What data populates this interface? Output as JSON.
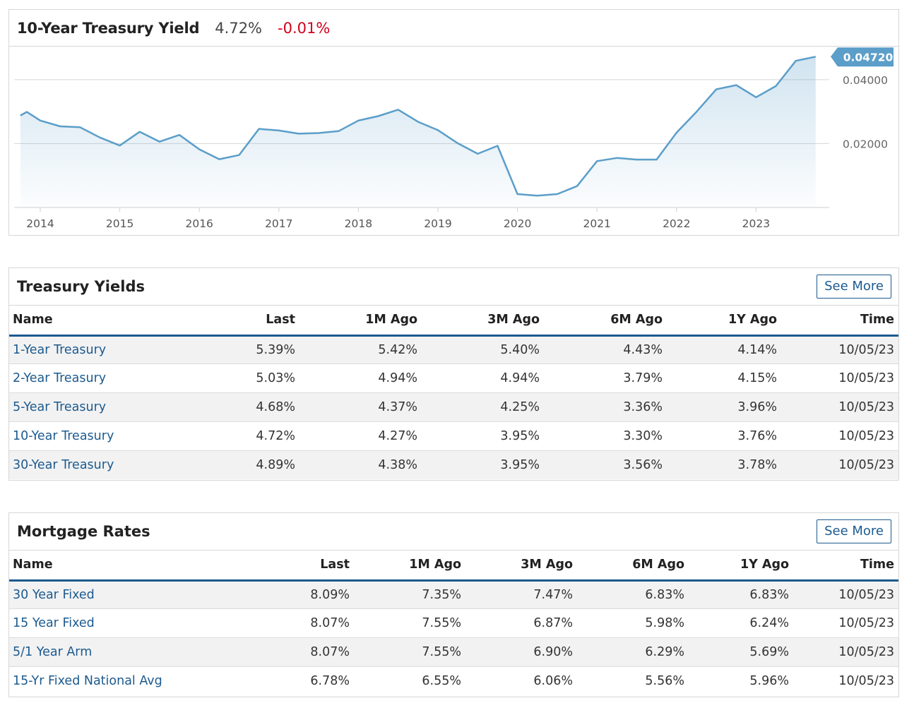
{
  "chart": {
    "title": "10-Year Treasury Yield",
    "last": "4.72%",
    "change": "-0.01%",
    "current_label": "0.04720",
    "line_color": "#5b9ec9",
    "label_bg": "#5b9ec9",
    "change_color": "#d0021b"
  },
  "chart_data": {
    "type": "area",
    "x": [
      2013.75,
      2013.83,
      2014.0,
      2014.25,
      2014.5,
      2014.75,
      2015.0,
      2015.25,
      2015.5,
      2015.75,
      2016.0,
      2016.25,
      2016.5,
      2016.75,
      2017.0,
      2017.25,
      2017.5,
      2017.75,
      2018.0,
      2018.25,
      2018.5,
      2018.75,
      2019.0,
      2019.25,
      2019.5,
      2019.75,
      2020.0,
      2020.25,
      2020.5,
      2020.75,
      2021.0,
      2021.25,
      2021.5,
      2021.75,
      2022.0,
      2022.25,
      2022.5,
      2022.75,
      2023.0,
      2023.25,
      2023.5,
      2023.75
    ],
    "values": [
      0.0288,
      0.0299,
      0.0272,
      0.0254,
      0.0251,
      0.0219,
      0.0194,
      0.0237,
      0.0206,
      0.0227,
      0.0182,
      0.0151,
      0.0164,
      0.0246,
      0.0241,
      0.0231,
      0.0233,
      0.0239,
      0.0272,
      0.0286,
      0.0306,
      0.0268,
      0.0242,
      0.0201,
      0.0168,
      0.0193,
      0.0042,
      0.0037,
      0.0042,
      0.0067,
      0.0145,
      0.0155,
      0.015,
      0.015,
      0.0234,
      0.0299,
      0.037,
      0.0383,
      0.0345,
      0.038,
      0.0459,
      0.0472
    ],
    "x_ticks": [
      "2014",
      "2015",
      "2016",
      "2017",
      "2018",
      "2019",
      "2020",
      "2021",
      "2022",
      "2023"
    ],
    "y_ticks": [
      "0.04000",
      "0.02000"
    ],
    "ylim": [
      0.0,
      0.053
    ],
    "xlim": [
      2013.75,
      2024.0
    ],
    "grid": true
  },
  "treasury": {
    "title": "Treasury Yields",
    "see_more": "See More",
    "columns": [
      "Name",
      "Last",
      "1M Ago",
      "3M Ago",
      "6M Ago",
      "1Y Ago",
      "Time"
    ],
    "rows": [
      [
        "1-Year Treasury",
        "5.39%",
        "5.42%",
        "5.40%",
        "4.43%",
        "4.14%",
        "10/05/23"
      ],
      [
        "2-Year Treasury",
        "5.03%",
        "4.94%",
        "4.94%",
        "3.79%",
        "4.15%",
        "10/05/23"
      ],
      [
        "5-Year Treasury",
        "4.68%",
        "4.37%",
        "4.25%",
        "3.36%",
        "3.96%",
        "10/05/23"
      ],
      [
        "10-Year Treasury",
        "4.72%",
        "4.27%",
        "3.95%",
        "3.30%",
        "3.76%",
        "10/05/23"
      ],
      [
        "30-Year Treasury",
        "4.89%",
        "4.38%",
        "3.95%",
        "3.56%",
        "3.78%",
        "10/05/23"
      ]
    ]
  },
  "mortgage": {
    "title": "Mortgage Rates",
    "see_more": "See More",
    "columns": [
      "Name",
      "Last",
      "1M Ago",
      "3M Ago",
      "6M Ago",
      "1Y Ago",
      "Time"
    ],
    "rows": [
      [
        "30 Year Fixed",
        "8.09%",
        "7.35%",
        "7.47%",
        "6.83%",
        "6.83%",
        "10/05/23"
      ],
      [
        "15 Year Fixed",
        "8.07%",
        "7.55%",
        "6.87%",
        "5.98%",
        "6.24%",
        "10/05/23"
      ],
      [
        "5/1 Year Arm",
        "8.07%",
        "7.55%",
        "6.90%",
        "6.29%",
        "5.69%",
        "10/05/23"
      ],
      [
        "15-Yr Fixed National Avg",
        "6.78%",
        "6.55%",
        "6.06%",
        "5.56%",
        "5.96%",
        "10/05/23"
      ]
    ]
  }
}
